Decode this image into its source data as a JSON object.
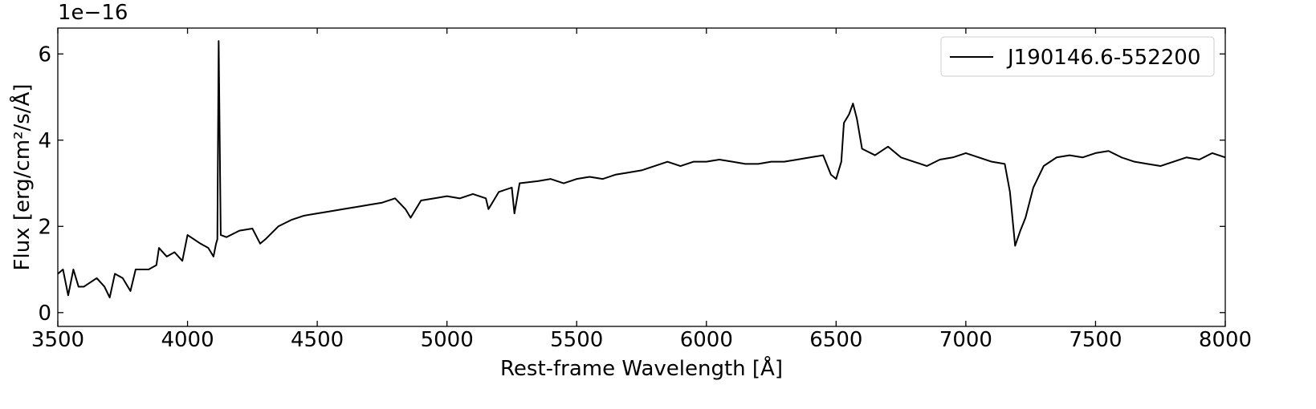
{
  "chart_data": {
    "type": "line",
    "y_offset_label": "1e−16",
    "xlabel": "Rest-frame Wavelength [Å]",
    "ylabel": "Flux [erg/cm²/s/Å]",
    "legend": "upper right",
    "xlim": [
      3500,
      8000
    ],
    "xticks": [
      3500,
      4000,
      4500,
      5000,
      5500,
      6000,
      6500,
      7000,
      7500,
      8000
    ],
    "ylim": [
      -0.32,
      6.6
    ],
    "yticks": [
      0,
      2,
      4,
      6
    ],
    "x": [
      3500,
      3520,
      3540,
      3560,
      3580,
      3600,
      3650,
      3680,
      3700,
      3720,
      3750,
      3780,
      3800,
      3850,
      3880,
      3890,
      3920,
      3950,
      3980,
      4000,
      4050,
      4080,
      4100,
      4110,
      4115,
      4120,
      4128,
      4150,
      4200,
      4250,
      4280,
      4300,
      4350,
      4400,
      4450,
      4500,
      4550,
      4600,
      4650,
      4700,
      4750,
      4800,
      4840,
      4860,
      4900,
      4950,
      5000,
      5050,
      5100,
      5150,
      5160,
      5200,
      5250,
      5260,
      5280,
      5350,
      5400,
      5450,
      5500,
      5550,
      5600,
      5650,
      5700,
      5750,
      5800,
      5850,
      5900,
      5950,
      6000,
      6050,
      6100,
      6150,
      6200,
      6250,
      6300,
      6350,
      6400,
      6450,
      6480,
      6500,
      6520,
      6530,
      6550,
      6565,
      6580,
      6600,
      6650,
      6700,
      6750,
      6800,
      6850,
      6900,
      6950,
      7000,
      7050,
      7100,
      7150,
      7170,
      7190,
      7210,
      7230,
      7260,
      7300,
      7350,
      7400,
      7450,
      7500,
      7550,
      7600,
      7650,
      7700,
      7750,
      7800,
      7850,
      7900,
      7950,
      8000
    ],
    "series": [
      {
        "name": "J190146.6-552200",
        "color": "#000000",
        "values": [
          0.9,
          1.0,
          0.4,
          1.0,
          0.6,
          0.6,
          0.8,
          0.6,
          0.35,
          0.9,
          0.8,
          0.5,
          1.0,
          1.0,
          1.1,
          1.5,
          1.3,
          1.4,
          1.2,
          1.8,
          1.6,
          1.5,
          1.3,
          1.6,
          1.7,
          6.3,
          1.8,
          1.75,
          1.9,
          1.95,
          1.6,
          1.7,
          2.0,
          2.15,
          2.25,
          2.3,
          2.35,
          2.4,
          2.45,
          2.5,
          2.55,
          2.65,
          2.4,
          2.2,
          2.6,
          2.65,
          2.7,
          2.65,
          2.75,
          2.65,
          2.4,
          2.8,
          2.9,
          2.3,
          3.0,
          3.05,
          3.1,
          3.0,
          3.1,
          3.15,
          3.1,
          3.2,
          3.25,
          3.3,
          3.4,
          3.5,
          3.4,
          3.5,
          3.5,
          3.55,
          3.5,
          3.45,
          3.45,
          3.5,
          3.5,
          3.55,
          3.6,
          3.65,
          3.2,
          3.1,
          3.5,
          4.4,
          4.6,
          4.85,
          4.5,
          3.8,
          3.65,
          3.85,
          3.6,
          3.5,
          3.4,
          3.55,
          3.6,
          3.7,
          3.6,
          3.5,
          3.45,
          2.8,
          1.55,
          1.9,
          2.2,
          2.9,
          3.4,
          3.6,
          3.65,
          3.6,
          3.7,
          3.75,
          3.6,
          3.5,
          3.45,
          3.4,
          3.5,
          3.6,
          3.55,
          3.7,
          3.6
        ]
      }
    ]
  }
}
